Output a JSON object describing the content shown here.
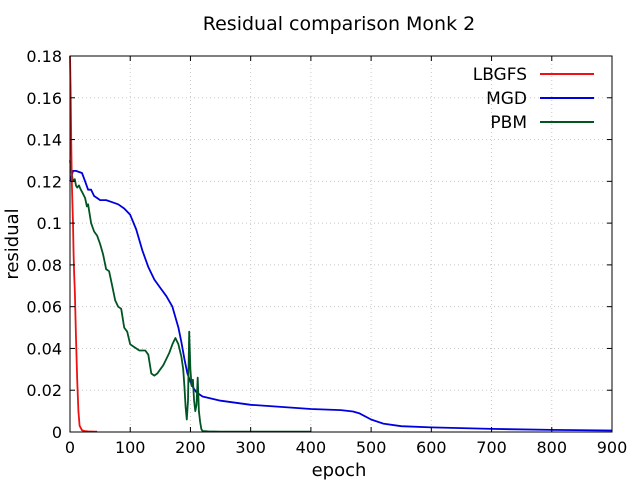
{
  "chart_data": {
    "type": "line",
    "title": "Residual comparison Monk 2",
    "xlabel": "epoch",
    "ylabel": "residual",
    "xlim": [
      0,
      900
    ],
    "ylim": [
      0,
      0.18
    ],
    "xticks": [
      0,
      100,
      200,
      300,
      400,
      500,
      600,
      700,
      800,
      900
    ],
    "yticks": [
      0,
      0.02,
      0.04,
      0.06,
      0.08,
      0.1,
      0.12,
      0.14,
      0.16,
      0.18
    ],
    "xtick_labels": [
      "0",
      "100",
      "200",
      "300",
      "400",
      "500",
      "600",
      "700",
      "800",
      "900"
    ],
    "ytick_labels": [
      "0",
      "0.02",
      "0.04",
      "0.06",
      "0.08",
      "0.1",
      "0.12",
      "0.14",
      "0.16",
      "0.18"
    ],
    "grid": true,
    "legend_position": "top-right",
    "series": [
      {
        "name": "LBGFS",
        "color": "#ee1111",
        "x": [
          0,
          1,
          2,
          3,
          4,
          5,
          6,
          7,
          8,
          10,
          12,
          14,
          16,
          20,
          25,
          30,
          40,
          45
        ],
        "y": [
          0.18,
          0.165,
          0.14,
          0.12,
          0.11,
          0.1,
          0.085,
          0.075,
          0.068,
          0.045,
          0.025,
          0.01,
          0.003,
          0.0008,
          0.0004,
          0.0003,
          0.0002,
          0.0002
        ]
      },
      {
        "name": "MGD",
        "color": "#0000dd",
        "x": [
          0,
          5,
          10,
          20,
          25,
          30,
          35,
          40,
          45,
          50,
          55,
          60,
          70,
          80,
          90,
          100,
          110,
          120,
          130,
          140,
          150,
          160,
          170,
          180,
          185,
          190,
          195,
          200,
          205,
          210,
          220,
          250,
          300,
          350,
          400,
          450,
          470,
          480,
          500,
          520,
          550,
          600,
          700,
          800,
          900
        ],
        "y": [
          0.12,
          0.125,
          0.125,
          0.124,
          0.12,
          0.116,
          0.116,
          0.113,
          0.112,
          0.111,
          0.111,
          0.111,
          0.11,
          0.109,
          0.107,
          0.104,
          0.097,
          0.087,
          0.079,
          0.073,
          0.069,
          0.065,
          0.06,
          0.05,
          0.043,
          0.035,
          0.028,
          0.024,
          0.021,
          0.019,
          0.017,
          0.015,
          0.013,
          0.012,
          0.011,
          0.0105,
          0.0098,
          0.009,
          0.006,
          0.004,
          0.0028,
          0.0022,
          0.0015,
          0.001,
          0.0007
        ]
      },
      {
        "name": "PBM",
        "color": "#005522",
        "x": [
          0,
          2,
          5,
          8,
          10,
          12,
          15,
          18,
          20,
          25,
          28,
          30,
          35,
          40,
          45,
          50,
          55,
          60,
          65,
          70,
          75,
          80,
          85,
          90,
          95,
          100,
          105,
          110,
          115,
          120,
          125,
          130,
          135,
          140,
          145,
          150,
          155,
          160,
          165,
          170,
          175,
          180,
          185,
          188,
          190,
          192,
          194,
          196,
          198,
          200,
          202,
          204,
          206,
          208,
          210,
          212,
          214,
          216,
          218,
          220,
          230,
          250,
          300,
          400
        ],
        "y": [
          0.13,
          0.125,
          0.12,
          0.121,
          0.118,
          0.117,
          0.118,
          0.116,
          0.115,
          0.112,
          0.108,
          0.109,
          0.1,
          0.096,
          0.094,
          0.09,
          0.085,
          0.078,
          0.077,
          0.07,
          0.063,
          0.06,
          0.059,
          0.05,
          0.048,
          0.042,
          0.041,
          0.04,
          0.039,
          0.039,
          0.039,
          0.037,
          0.028,
          0.027,
          0.028,
          0.03,
          0.032,
          0.035,
          0.038,
          0.042,
          0.045,
          0.042,
          0.036,
          0.03,
          0.022,
          0.012,
          0.006,
          0.015,
          0.048,
          0.03,
          0.022,
          0.025,
          0.015,
          0.01,
          0.013,
          0.026,
          0.01,
          0.005,
          0.0015,
          0.0005,
          0.0003,
          0.0002,
          0.0002,
          0.0002
        ]
      }
    ]
  }
}
